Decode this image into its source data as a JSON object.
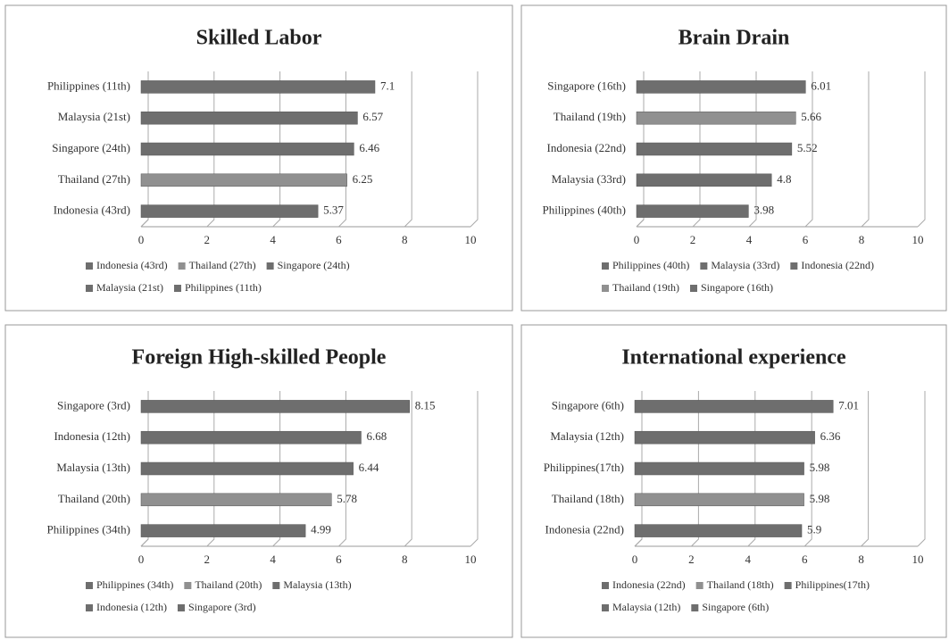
{
  "chart_data": [
    {
      "type": "bar",
      "title": "Skilled Labor",
      "categories": [
        "Indonesia (43rd)",
        "Thailand (27th)",
        "Singapore (24th)",
        "Malaysia (21st)",
        "Philippines (11th)"
      ],
      "values": [
        5.37,
        6.25,
        6.46,
        6.57,
        7.1
      ],
      "colors": [
        "#6e6e6e",
        "#909090",
        "#6e6e6e",
        "#6e6e6e",
        "#6e6e6e"
      ],
      "xlim": [
        0,
        10
      ],
      "xticks": [
        0,
        2,
        4,
        6,
        8,
        10
      ],
      "grid": true
    },
    {
      "type": "bar",
      "title": "Brain Drain",
      "categories": [
        "Philippines (40th)",
        "Malaysia (33rd)",
        "Indonesia (22nd)",
        "Thailand (19th)",
        "Singapore (16th)"
      ],
      "values": [
        3.98,
        4.8,
        5.52,
        5.66,
        6.01
      ],
      "colors": [
        "#6e6e6e",
        "#6e6e6e",
        "#6e6e6e",
        "#909090",
        "#6e6e6e"
      ],
      "xlim": [
        0,
        10
      ],
      "xticks": [
        0,
        2,
        4,
        6,
        8,
        10
      ],
      "grid": true
    },
    {
      "type": "bar",
      "title": "Foreign High-skilled People",
      "categories": [
        "Philippines (34th)",
        "Thailand (20th)",
        "Malaysia (13th)",
        "Indonesia (12th)",
        "Singapore (3rd)"
      ],
      "values": [
        4.99,
        5.78,
        6.44,
        6.68,
        8.15
      ],
      "colors": [
        "#6e6e6e",
        "#909090",
        "#6e6e6e",
        "#6e6e6e",
        "#6e6e6e"
      ],
      "xlim": [
        0,
        10
      ],
      "xticks": [
        0,
        2,
        4,
        6,
        8,
        10
      ],
      "grid": true
    },
    {
      "type": "bar",
      "title": "International experience",
      "categories": [
        "Indonesia (22nd)",
        "Thailand (18th)",
        "Philippines(17th)",
        "Malaysia (12th)",
        "Singapore (6th)"
      ],
      "values": [
        5.9,
        5.98,
        5.98,
        6.36,
        7.01
      ],
      "colors": [
        "#6e6e6e",
        "#909090",
        "#6e6e6e",
        "#6e6e6e",
        "#6e6e6e"
      ],
      "xlim": [
        0,
        10
      ],
      "xticks": [
        0,
        2,
        4,
        6,
        8,
        10
      ],
      "grid": true
    }
  ]
}
